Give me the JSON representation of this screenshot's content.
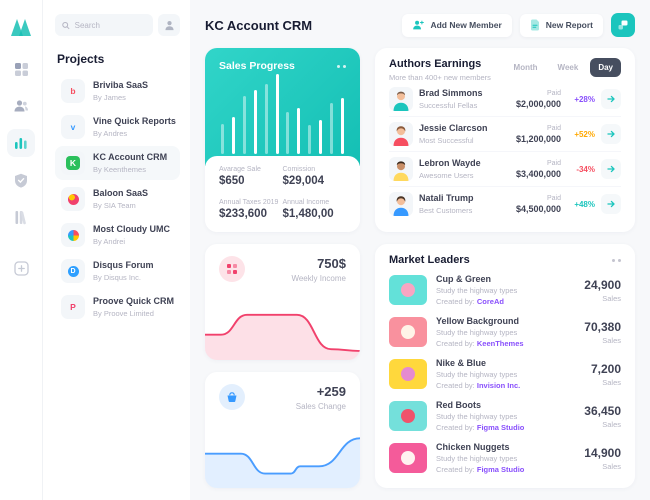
{
  "window": {
    "title": "KC Account CRM"
  },
  "rail": {
    "logo_icon": "metronic-logo",
    "icons": [
      "dashboard-grid-icon",
      "users-icon",
      "bar-chart-icon",
      "shield-check-icon",
      "library-icon",
      "new-file-icon"
    ],
    "active_icon": "bar-chart-icon"
  },
  "sidebar": {
    "search": {
      "placeholder": "Search"
    },
    "profile_icon": "person-icon",
    "projects_title": "Projects",
    "projects": [
      {
        "name": "Briviba SaaS",
        "by": "By James",
        "glyph": "b",
        "glyph_color": "#F64E60"
      },
      {
        "name": "Vine Quick Reports",
        "by": "By Andres",
        "glyph": "v",
        "glyph_color": "#3699FF"
      },
      {
        "name": "KC Account CRM",
        "by": "By Keenthemes",
        "glyph": "K",
        "glyph_color": "#FFFFFF",
        "chip_bg": "#2BC05C",
        "active": true
      },
      {
        "name": "Baloon SaaS",
        "by": "By SIA Team",
        "glyph": "",
        "chip_bg": "radial-gradient(circle at 35% 30%, #FFC700 0 28%, #F1416C 30%)"
      },
      {
        "name": "Most Cloudy UMC",
        "by": "By Andrei",
        "glyph": "",
        "chip_bg": "conic-gradient(#F64E60 0 25%, #FFC700 25% 50%, #1BC5BD 50% 75%, #3699FF 75% 100%)"
      },
      {
        "name": "Disqus Forum",
        "by": "By Disqus Inc.",
        "glyph": "D",
        "glyph_color": "#FFFFFF",
        "chip_bg": "#2E9FFF"
      },
      {
        "name": "Proove Quick CRM",
        "by": "By Proove Limited",
        "glyph": "P",
        "glyph_color": "#F1416C"
      }
    ]
  },
  "header": {
    "title": "KC Account CRM",
    "add_member_label": "Add New Member",
    "new_report_label": "New Report",
    "icons": [
      "add-user-icon",
      "report-file-icon",
      "quick-actions-icon"
    ]
  },
  "sales_progress": {
    "title": "Sales Progress",
    "stats": [
      {
        "label": "Avarage Sale",
        "value": "$650"
      },
      {
        "label": "Comission",
        "value": "$29,004"
      },
      {
        "label": "Annual Taxes 2019",
        "value": "$233,600"
      },
      {
        "label": "Annual Income",
        "value": "$1,480,00"
      }
    ]
  },
  "authors": {
    "title": "Authors Earnings",
    "subtitle": "More than 400+ new members",
    "tabs": [
      "Month",
      "Week",
      "Day"
    ],
    "active_tab": "Day",
    "paid_label": "Paid",
    "rows": [
      {
        "name": "Brad Simmons",
        "group": "Successful Fellas",
        "amount": "$2,000,000",
        "change": "+28%",
        "change_color": "#8950FC",
        "shirt": "#1BC5BD"
      },
      {
        "name": "Jessie Clarcson",
        "group": "Most Successful",
        "amount": "$1,200,000",
        "change": "+52%",
        "change_color": "#FFA800",
        "shirt": "#F64E60"
      },
      {
        "name": "Lebron Wayde",
        "group": "Awesome Users",
        "amount": "$3,400,000",
        "change": "-34%",
        "change_color": "#F64E60",
        "shirt": "#FFD95E"
      },
      {
        "name": "Natali Trump",
        "group": "Best Customers",
        "amount": "$4,500,000",
        "change": "+48%",
        "change_color": "#1BC5BD",
        "shirt": "#3699FF"
      }
    ]
  },
  "weekly_income": {
    "value": "750$",
    "label": "Weekly Income",
    "icon": "grid-dots-icon"
  },
  "sales_change": {
    "value": "+259",
    "label": "Sales Change",
    "icon": "basket-icon"
  },
  "market_leaders": {
    "title": "Market Leaders",
    "created_label": "Created by:",
    "unit": "Sales",
    "rows": [
      {
        "name": "Cup & Green",
        "desc": "Study the highway types",
        "creator": "CoreAd",
        "value": "24,900",
        "thumb_bg": "#63E1D9",
        "thumb_fg": "#F8A5C2"
      },
      {
        "name": "Yellow Background",
        "desc": "Study the highway types",
        "creator": "KeenThemes",
        "value": "70,380",
        "thumb_bg": "#F9919E",
        "thumb_fg": "#FFF4E8"
      },
      {
        "name": "Nike & Blue",
        "desc": "Study the highway types",
        "creator": "Invision Inc.",
        "value": "7,200",
        "thumb_bg": "#FFD83C",
        "thumb_fg": "#E58BD0"
      },
      {
        "name": "Red Boots",
        "desc": "Study the highway types",
        "creator": "Figma Studio",
        "value": "36,450",
        "thumb_bg": "#74E0DB",
        "thumb_fg": "#F0536B"
      },
      {
        "name": "Chicken Nuggets",
        "desc": "Study the highway types",
        "creator": "Figma Studio",
        "value": "14,900",
        "thumb_bg": "#F45B9A",
        "thumb_fg": "#FFF2F0"
      }
    ]
  },
  "chart_data": [
    {
      "type": "bar",
      "title": "Sales Progress",
      "values": [
        38,
        46,
        72,
        80,
        88,
        100,
        52,
        58,
        36,
        42,
        64,
        70
      ],
      "bar_color": "#FFFFFF",
      "note": "thin white bars on teal card, odd bars at 45% opacity, no axes or labels"
    },
    {
      "type": "area",
      "title": "Weekly Income",
      "value": 750,
      "svg": "weekly-income-chart",
      "color": "#F1416C",
      "fill": "rgba(241,65,108,0.16)",
      "points": [
        [
          0,
          34
        ],
        [
          16,
          34
        ],
        [
          42,
          12
        ],
        [
          92,
          12
        ],
        [
          126,
          50
        ],
        [
          155,
          52
        ]
      ],
      "xlim": [
        0,
        155
      ],
      "ylim": [
        0,
        62
      ]
    },
    {
      "type": "area",
      "title": "Sales Change",
      "value": 259,
      "svg": "sales-change-chart",
      "color": "#4A9DFF",
      "fill": "rgba(74,157,255,0.16)",
      "points": [
        [
          0,
          24
        ],
        [
          36,
          24
        ],
        [
          60,
          46
        ],
        [
          86,
          46
        ],
        [
          95,
          38
        ],
        [
          114,
          38
        ],
        [
          155,
          7
        ]
      ],
      "xlim": [
        0,
        155
      ],
      "ylim": [
        0,
        62
      ]
    }
  ],
  "colors": {
    "primary_teal": "#1BC5BD",
    "purple": "#8950FC",
    "orange": "#FFA800",
    "red": "#F64E60",
    "blue": "#3699FF",
    "dark_text": "#3F4254",
    "muted_text": "#B5B5C3"
  }
}
